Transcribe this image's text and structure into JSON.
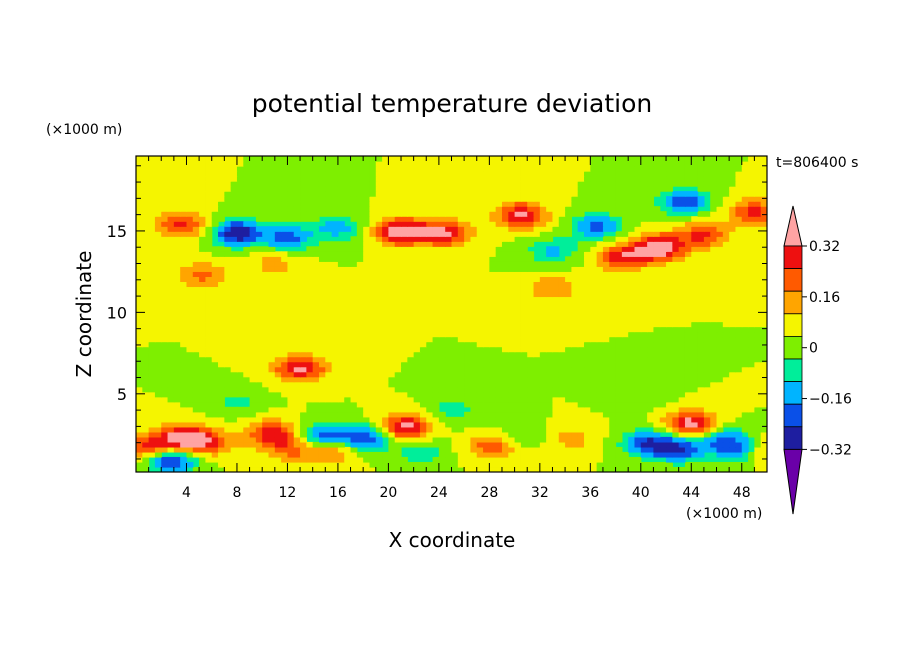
{
  "chart_data": {
    "type": "heatmap",
    "title": "potential temperature deviation",
    "xlabel": "X coordinate",
    "ylabel": "Z coordinate",
    "x_unit": "(×1000 m)",
    "y_unit": "(×1000 m)",
    "time_label": "t=806400 s",
    "xlim": [
      0,
      50
    ],
    "ylim": [
      0.2,
      19.6
    ],
    "xticks": [
      "4",
      "8",
      "12",
      "16",
      "20",
      "24",
      "28",
      "32",
      "36",
      "40",
      "44",
      "48"
    ],
    "xtick_values": [
      4,
      8,
      12,
      16,
      20,
      24,
      28,
      32,
      36,
      40,
      44,
      48
    ],
    "yticks": [
      "5",
      "10",
      "15"
    ],
    "ytick_values": [
      5,
      10,
      15
    ],
    "colorbar": {
      "tick_labels": [
        "0.32",
        "0.16",
        "0",
        "−0.16",
        "−0.32"
      ],
      "tick_values": [
        0.32,
        0.16,
        0,
        -0.16,
        -0.32
      ],
      "levels": [
        -0.4,
        -0.32,
        -0.24,
        -0.16,
        -0.08,
        0,
        0.08,
        0.16,
        0.24,
        0.32,
        0.4
      ],
      "colors": [
        "#6a00a8",
        "#1e1ea0",
        "#0a50e8",
        "#00b4ff",
        "#00ee9a",
        "#7eef00",
        "#f5f500",
        "#ffa500",
        "#ff5a00",
        "#ee1010",
        "#ffa3a3"
      ],
      "extend": "both"
    },
    "features": [
      {
        "x": 3.6,
        "z": 15.4,
        "value": 0.26
      },
      {
        "x": 8.0,
        "z": 14.9,
        "value": -0.4
      },
      {
        "x": 12.0,
        "z": 14.6,
        "value": -0.28
      },
      {
        "x": 16.0,
        "z": 15.2,
        "value": -0.2
      },
      {
        "x": 21.0,
        "z": 15.0,
        "value": 0.42
      },
      {
        "x": 24.5,
        "z": 14.9,
        "value": 0.34
      },
      {
        "x": 30.5,
        "z": 16.0,
        "value": 0.34
      },
      {
        "x": 33.0,
        "z": 13.8,
        "value": -0.18
      },
      {
        "x": 36.5,
        "z": 15.3,
        "value": -0.26
      },
      {
        "x": 38.5,
        "z": 13.4,
        "value": 0.3
      },
      {
        "x": 41.5,
        "z": 14.0,
        "value": 0.42
      },
      {
        "x": 43.5,
        "z": 16.8,
        "value": -0.3
      },
      {
        "x": 45.0,
        "z": 14.8,
        "value": 0.26
      },
      {
        "x": 49.0,
        "z": 16.2,
        "value": 0.26
      },
      {
        "x": 5.2,
        "z": 12.3,
        "value": 0.18
      },
      {
        "x": 11.0,
        "z": 13.0,
        "value": 0.12
      },
      {
        "x": 33.0,
        "z": 11.5,
        "value": 0.16
      },
      {
        "x": 13.0,
        "z": 6.6,
        "value": 0.35
      },
      {
        "x": 3.8,
        "z": 2.3,
        "value": 0.42
      },
      {
        "x": 2.8,
        "z": 0.9,
        "value": -0.34
      },
      {
        "x": 0.8,
        "z": 1.8,
        "value": 0.24
      },
      {
        "x": 6.0,
        "z": 2.0,
        "value": 0.18
      },
      {
        "x": 10.8,
        "z": 2.6,
        "value": 0.3
      },
      {
        "x": 12.3,
        "z": 1.6,
        "value": 0.18
      },
      {
        "x": 14.8,
        "z": 2.4,
        "value": -0.3
      },
      {
        "x": 15.5,
        "z": 1.5,
        "value": 0.2
      },
      {
        "x": 18.2,
        "z": 2.3,
        "value": -0.32
      },
      {
        "x": 21.3,
        "z": 3.0,
        "value": 0.36
      },
      {
        "x": 22.5,
        "z": 1.4,
        "value": -0.14
      },
      {
        "x": 28.3,
        "z": 1.8,
        "value": 0.22
      },
      {
        "x": 30.5,
        "z": 2.5,
        "value": -0.1
      },
      {
        "x": 34.5,
        "z": 2.3,
        "value": 0.12
      },
      {
        "x": 40.5,
        "z": 2.0,
        "value": -0.3
      },
      {
        "x": 43.0,
        "z": 1.6,
        "value": -0.32
      },
      {
        "x": 44.0,
        "z": 3.2,
        "value": 0.36
      },
      {
        "x": 46.5,
        "z": 2.2,
        "value": -0.22
      },
      {
        "x": 48.0,
        "z": 1.5,
        "value": -0.28
      },
      {
        "x": 49.6,
        "z": 1.5,
        "value": 0.22
      },
      {
        "x": 25.0,
        "z": 4.0,
        "value": -0.12
      },
      {
        "x": 8.0,
        "z": 4.5,
        "value": -0.1
      },
      {
        "x": 40.0,
        "z": 5.0,
        "value": -0.08
      }
    ]
  }
}
